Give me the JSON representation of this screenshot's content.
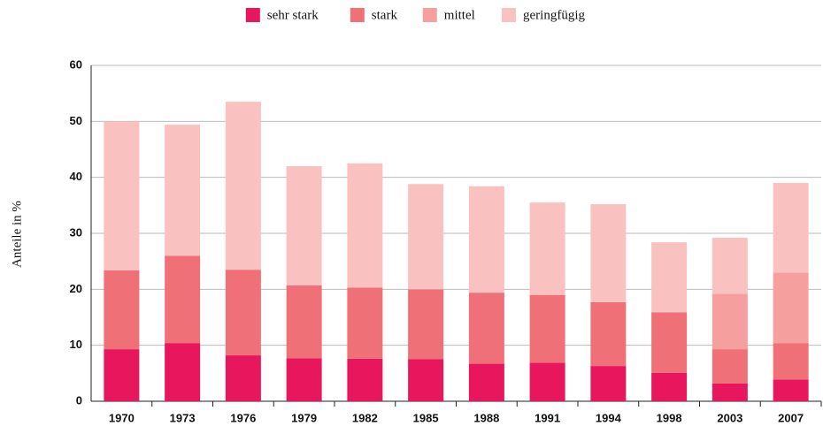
{
  "chart_data": {
    "type": "stacked_bar",
    "ylabel": "Anteile in %",
    "categories": [
      "1970",
      "1973",
      "1976",
      "1979",
      "1982",
      "1985",
      "1988",
      "1991",
      "1994",
      "1998",
      "2003",
      "2007"
    ],
    "series": [
      {
        "name": "sehr stark",
        "color": "#e8175d",
        "values": [
          9.3,
          10.4,
          8.2,
          7.7,
          7.6,
          7.5,
          6.7,
          6.9,
          6.3,
          5.1,
          3.2,
          3.9
        ]
      },
      {
        "name": "stark",
        "color": "#f07078",
        "values": [
          14.1,
          15.6,
          15.3,
          13.0,
          12.7,
          12.5,
          12.7,
          12.1,
          11.4,
          10.8,
          6.1,
          6.5
        ]
      },
      {
        "name": "mittel",
        "color": "#f5a09e",
        "values": [
          0,
          0,
          0,
          0,
          0,
          0,
          0,
          0,
          0,
          0,
          9.9,
          12.6
        ]
      },
      {
        "name": "geringfügig",
        "color": "#f9c1bf",
        "values": [
          26.6,
          23.4,
          30.0,
          21.3,
          22.2,
          18.8,
          19.0,
          16.5,
          17.5,
          12.5,
          10.0,
          16.0
        ]
      }
    ],
    "ylim": [
      0,
      60
    ],
    "yticks": [
      0,
      10,
      20,
      30,
      40,
      50,
      60
    ],
    "grid": true,
    "legend": "top"
  }
}
